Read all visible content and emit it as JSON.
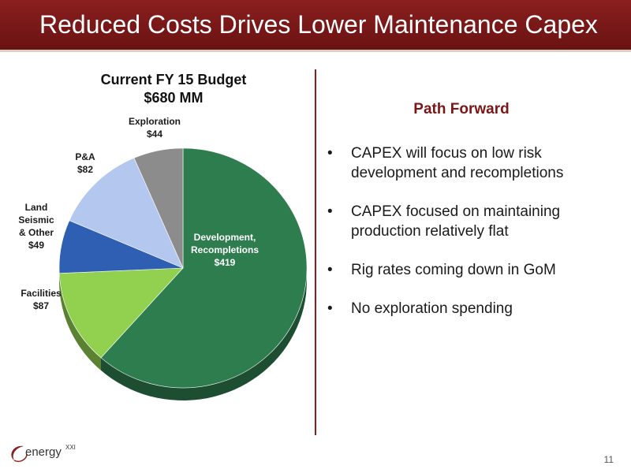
{
  "header": {
    "title": "Reduced Costs Drives Lower Maintenance Capex"
  },
  "chart_data": {
    "type": "pie",
    "title": "Current FY 15 Budget",
    "subtitle": "$680 MM",
    "slices": [
      {
        "label": "Development, Recompletions",
        "value": 419,
        "display": "$419",
        "color": "#2e7d4f"
      },
      {
        "label": "Facilities",
        "value": 87,
        "display": "$87",
        "color": "#92d050"
      },
      {
        "label": "Land Seismic & Other",
        "value": 49,
        "display": "$49",
        "color": "#2f5fb3"
      },
      {
        "label": "P&A",
        "value": 82,
        "display": "$82",
        "color": "#b4c7ee"
      },
      {
        "label": "Exploration",
        "value": 44,
        "display": "$44",
        "color": "#8c8c8c"
      }
    ]
  },
  "path_forward": {
    "title": "Path Forward",
    "bullets": [
      "CAPEX will focus on low risk development and recompletions",
      "CAPEX focused on maintaining production relatively flat",
      "Rig rates coming down in GoM",
      "No exploration spending"
    ]
  },
  "footer": {
    "logo_text": "energy",
    "logo_superscript": "XXI",
    "page_number": "11"
  }
}
